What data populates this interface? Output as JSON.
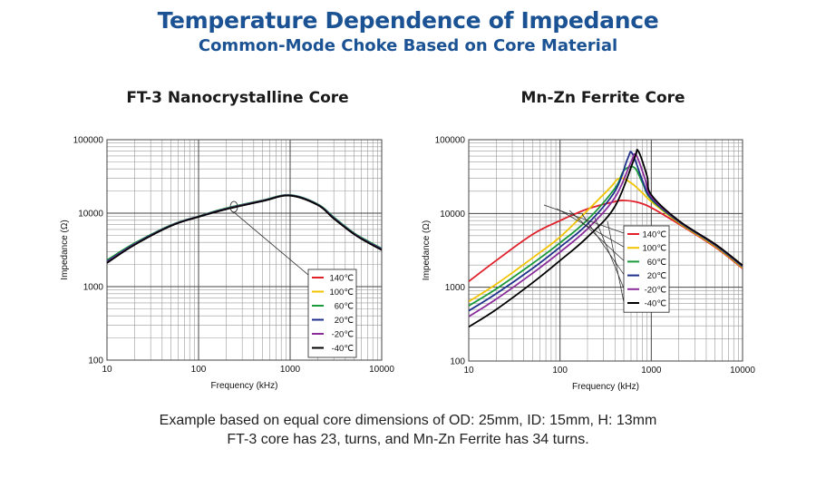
{
  "title": "Temperature Dependence of Impedance",
  "subtitle": "Common-Mode Choke Based on Core Material",
  "captions": [
    "Example based on equal core dimensions of OD: 25mm, ID: 15mm, H: 13mm",
    "FT-3 core has 23, turns, and Mn-Zn Ferrite has 34 turns."
  ],
  "chart_data": [
    {
      "type": "line",
      "title": "FT-3 Nanocrystalline Core",
      "xlabel": "Frequency (kHz)",
      "ylabel": "Impedance (Ω)",
      "xscale": "log",
      "yscale": "log",
      "xlim": [
        10,
        10000
      ],
      "ylim": [
        100,
        100000
      ],
      "xticks": [
        "10",
        "100",
        "1000",
        "10000"
      ],
      "yticks": [
        "100",
        "1000",
        "10000",
        "100000"
      ],
      "legend_position": "bottom-right",
      "series": [
        {
          "name": "140℃",
          "color": "#e0202a",
          "x": [
            10,
            20,
            50,
            100,
            200,
            500,
            1000,
            2000,
            3000,
            5000,
            7000,
            10000
          ],
          "y": [
            2200,
            3800,
            6800,
            9000,
            11500,
            14800,
            17500,
            13000,
            8500,
            5200,
            4100,
            3200
          ]
        },
        {
          "name": "100℃",
          "color": "#f2c400",
          "x": [
            10,
            20,
            50,
            100,
            200,
            500,
            1000,
            2000,
            3000,
            5000,
            7000,
            10000
          ],
          "y": [
            2250,
            3850,
            6850,
            9050,
            11600,
            14900,
            17600,
            13200,
            8700,
            5300,
            4150,
            3250
          ]
        },
        {
          "name": "60℃",
          "color": "#1a9a3a",
          "x": [
            10,
            20,
            50,
            100,
            200,
            500,
            1000,
            2000,
            3000,
            5000,
            7000,
            10000
          ],
          "y": [
            2300,
            3900,
            6900,
            9100,
            11700,
            15000,
            17700,
            13300,
            8800,
            5350,
            4200,
            3300
          ]
        },
        {
          "name": "20℃",
          "color": "#1f2f8c",
          "x": [
            10,
            20,
            50,
            100,
            200,
            500,
            1000,
            2000,
            3000,
            5000,
            7000,
            10000
          ],
          "y": [
            2200,
            3800,
            6800,
            9000,
            11500,
            14800,
            17500,
            13100,
            8600,
            5250,
            4100,
            3250
          ]
        },
        {
          "name": "-20℃",
          "color": "#8a2b9a",
          "x": [
            10,
            20,
            50,
            100,
            200,
            500,
            1000,
            2000,
            3000,
            5000,
            7000,
            10000
          ],
          "y": [
            2150,
            3750,
            6750,
            8950,
            11400,
            14700,
            17400,
            13000,
            8500,
            5200,
            4050,
            3200
          ]
        },
        {
          "name": "-40℃",
          "color": "#000000",
          "x": [
            10,
            20,
            50,
            100,
            200,
            500,
            1000,
            2000,
            3000,
            5000,
            7000,
            10000
          ],
          "y": [
            2100,
            3700,
            6700,
            8900,
            11300,
            14600,
            17300,
            12900,
            8400,
            5150,
            4000,
            3150
          ]
        }
      ]
    },
    {
      "type": "line",
      "title": "Mn-Zn Ferrite Core",
      "xlabel": "Frequency (kHz)",
      "ylabel": "Impedance (Ω)",
      "xscale": "log",
      "yscale": "log",
      "xlim": [
        10,
        10000
      ],
      "ylim": [
        100,
        100000
      ],
      "xticks": [
        "10",
        "100",
        "1000",
        "10000"
      ],
      "yticks": [
        "100",
        "1000",
        "10000",
        "100000"
      ],
      "legend_position": "middle-right",
      "series": [
        {
          "name": "140℃",
          "color": "#e0202a",
          "x": [
            10,
            20,
            50,
            100,
            200,
            400,
            500,
            700,
            1000,
            2000,
            5000,
            10000
          ],
          "y": [
            1200,
            2300,
            5200,
            8000,
            11500,
            14500,
            15000,
            14200,
            12000,
            7200,
            3500,
            1800
          ]
        },
        {
          "name": "100℃",
          "color": "#f2c400",
          "x": [
            10,
            20,
            50,
            100,
            200,
            350,
            450,
            600,
            800,
            1000,
            2000,
            5000,
            10000
          ],
          "y": [
            640,
            1100,
            2500,
            4800,
            11000,
            22000,
            30000,
            26000,
            19000,
            14500,
            7500,
            3600,
            1850
          ]
        },
        {
          "name": "60℃",
          "color": "#1a9a3a",
          "x": [
            10,
            20,
            50,
            100,
            200,
            400,
            500,
            650,
            800,
            1000,
            2000,
            5000,
            10000
          ],
          "y": [
            560,
            950,
            2100,
            4000,
            8200,
            22000,
            38000,
            42000,
            26000,
            15500,
            7700,
            3700,
            1900
          ]
        },
        {
          "name": "20℃",
          "color": "#1f2f8c",
          "x": [
            10,
            20,
            50,
            100,
            200,
            400,
            550,
            620,
            800,
            1000,
            2000,
            5000,
            10000
          ],
          "y": [
            480,
            820,
            1800,
            3500,
            7200,
            20000,
            55000,
            65000,
            28000,
            16000,
            7800,
            3750,
            1920
          ]
        },
        {
          "name": "-20℃",
          "color": "#8a2b9a",
          "x": [
            10,
            20,
            50,
            100,
            200,
            400,
            600,
            680,
            850,
            1000,
            2000,
            5000,
            10000
          ],
          "y": [
            400,
            690,
            1550,
            3000,
            6200,
            16500,
            50000,
            62000,
            30000,
            17000,
            7900,
            3800,
            1950
          ]
        },
        {
          "name": "-40℃",
          "color": "#000000",
          "x": [
            10,
            20,
            50,
            100,
            200,
            400,
            650,
            720,
            900,
            1000,
            2000,
            5000,
            10000
          ],
          "y": [
            290,
            500,
            1150,
            2300,
            4800,
            12500,
            55000,
            70000,
            32000,
            18000,
            8000,
            3850,
            1980
          ]
        }
      ]
    }
  ]
}
